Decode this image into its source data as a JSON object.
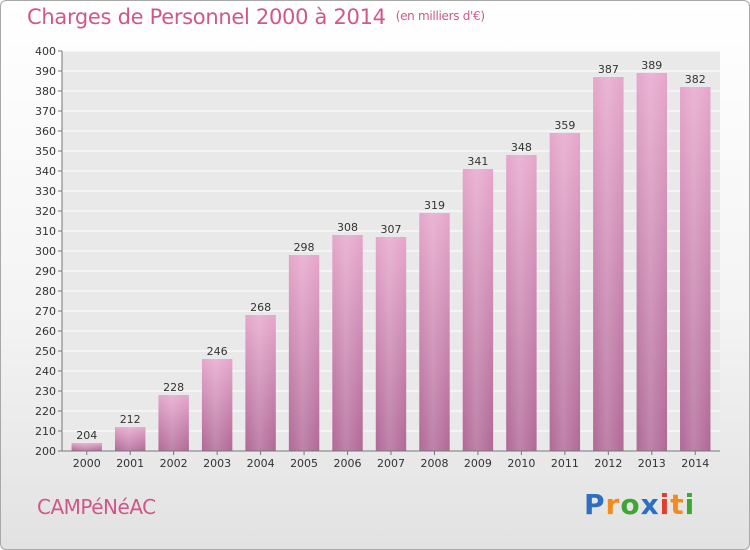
{
  "header": {
    "title": "Charges de Personnel 2000 à 2014",
    "unit": "(en milliers d'€)"
  },
  "footer": {
    "commune": "CAMPéNéAC",
    "logo_letters": [
      "P",
      "r",
      "o",
      "x",
      "i",
      "t",
      "i"
    ],
    "logo_colors": [
      "#2f6fc0",
      "#f28c1e",
      "#3fa535",
      "#2f6fc0",
      "#e23c2a",
      "#f28c1e",
      "#3fa535"
    ]
  },
  "chart_data": {
    "type": "bar",
    "title": "Charges de Personnel 2000 à 2014",
    "subtitle": "(en milliers d'€)",
    "xlabel": "",
    "ylabel": "",
    "categories": [
      "2000",
      "2001",
      "2002",
      "2003",
      "2004",
      "2005",
      "2006",
      "2007",
      "2008",
      "2009",
      "2010",
      "2011",
      "2012",
      "2013",
      "2014"
    ],
    "values": [
      204,
      212,
      228,
      246,
      268,
      298,
      308,
      307,
      319,
      341,
      348,
      359,
      387,
      389,
      382
    ],
    "ylim": [
      200,
      400
    ],
    "yticks": [
      200,
      210,
      220,
      230,
      240,
      250,
      260,
      270,
      280,
      290,
      300,
      310,
      320,
      330,
      340,
      350,
      360,
      370,
      380,
      390,
      400
    ],
    "grid": true,
    "bar_color": "#c8709e",
    "legend": "none"
  }
}
